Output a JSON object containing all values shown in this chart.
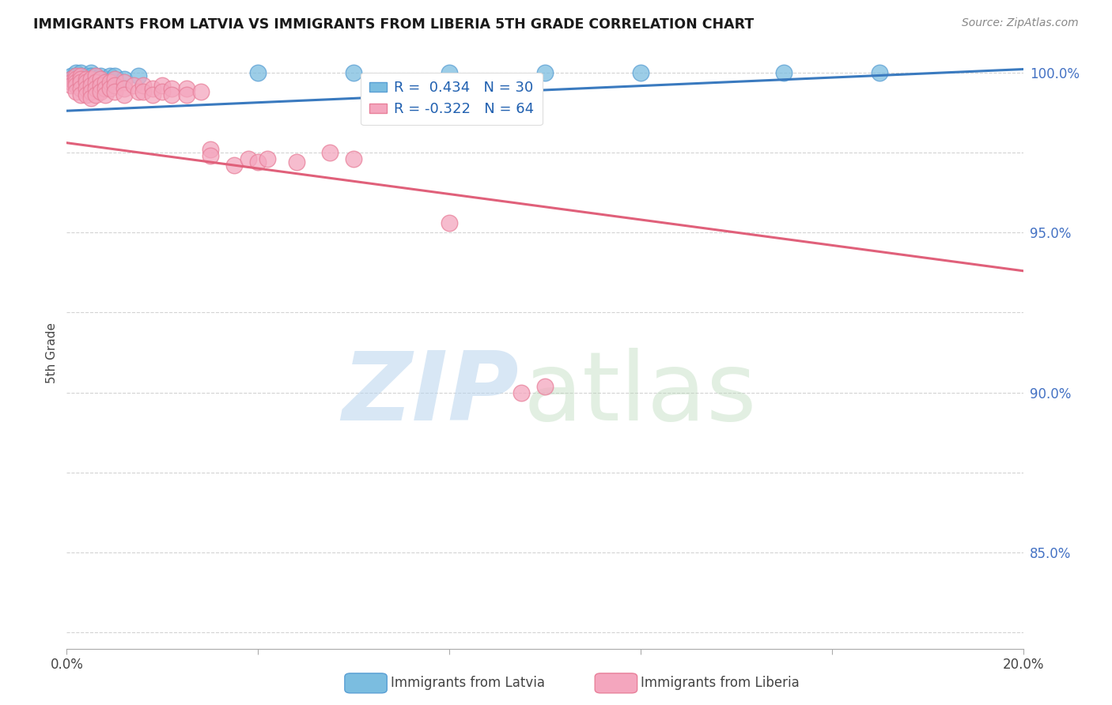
{
  "title": "IMMIGRANTS FROM LATVIA VS IMMIGRANTS FROM LIBERIA 5TH GRADE CORRELATION CHART",
  "source": "Source: ZipAtlas.com",
  "ylabel": "5th Grade",
  "latvia_R": 0.434,
  "latvia_N": 30,
  "liberia_R": -0.322,
  "liberia_N": 64,
  "latvia_color": "#7bbde0",
  "liberia_color": "#f4a6be",
  "latvia_line_color": "#3a7abf",
  "liberia_line_color": "#e0607a",
  "legend_label_latvia": "Immigrants from Latvia",
  "legend_label_liberia": "Immigrants from Liberia",
  "y_min": 0.82,
  "y_max": 1.005,
  "x_min": 0.0,
  "x_max": 0.2,
  "latvia_line": [
    0.0,
    0.988,
    0.2,
    1.001
  ],
  "liberia_line": [
    0.0,
    0.978,
    0.2,
    0.938
  ],
  "latvia_scatter": [
    [
      0.001,
      0.999
    ],
    [
      0.001,
      0.998
    ],
    [
      0.002,
      1.0
    ],
    [
      0.002,
      0.999
    ],
    [
      0.002,
      0.998
    ],
    [
      0.002,
      0.997
    ],
    [
      0.003,
      1.0
    ],
    [
      0.003,
      0.999
    ],
    [
      0.003,
      0.998
    ],
    [
      0.003,
      0.997
    ],
    [
      0.004,
      0.999
    ],
    [
      0.004,
      0.998
    ],
    [
      0.005,
      1.0
    ],
    [
      0.005,
      0.999
    ],
    [
      0.005,
      0.998
    ],
    [
      0.006,
      0.999
    ],
    [
      0.006,
      0.998
    ],
    [
      0.007,
      0.999
    ],
    [
      0.008,
      0.998
    ],
    [
      0.009,
      0.999
    ],
    [
      0.01,
      0.999
    ],
    [
      0.012,
      0.998
    ],
    [
      0.015,
      0.999
    ],
    [
      0.04,
      1.0
    ],
    [
      0.06,
      1.0
    ],
    [
      0.08,
      1.0
    ],
    [
      0.1,
      1.0
    ],
    [
      0.12,
      1.0
    ],
    [
      0.15,
      1.0
    ],
    [
      0.17,
      1.0
    ]
  ],
  "liberia_scatter": [
    [
      0.001,
      0.998
    ],
    [
      0.001,
      0.997
    ],
    [
      0.001,
      0.996
    ],
    [
      0.002,
      0.999
    ],
    [
      0.002,
      0.998
    ],
    [
      0.002,
      0.997
    ],
    [
      0.002,
      0.996
    ],
    [
      0.002,
      0.994
    ],
    [
      0.003,
      0.999
    ],
    [
      0.003,
      0.998
    ],
    [
      0.003,
      0.997
    ],
    [
      0.003,
      0.995
    ],
    [
      0.003,
      0.993
    ],
    [
      0.004,
      0.998
    ],
    [
      0.004,
      0.997
    ],
    [
      0.004,
      0.995
    ],
    [
      0.004,
      0.993
    ],
    [
      0.005,
      0.998
    ],
    [
      0.005,
      0.996
    ],
    [
      0.005,
      0.994
    ],
    [
      0.005,
      0.992
    ],
    [
      0.006,
      0.999
    ],
    [
      0.006,
      0.997
    ],
    [
      0.006,
      0.995
    ],
    [
      0.006,
      0.993
    ],
    [
      0.007,
      0.998
    ],
    [
      0.007,
      0.996
    ],
    [
      0.007,
      0.994
    ],
    [
      0.008,
      0.997
    ],
    [
      0.008,
      0.995
    ],
    [
      0.008,
      0.993
    ],
    [
      0.009,
      0.997
    ],
    [
      0.009,
      0.995
    ],
    [
      0.01,
      0.998
    ],
    [
      0.01,
      0.996
    ],
    [
      0.01,
      0.994
    ],
    [
      0.012,
      0.997
    ],
    [
      0.012,
      0.995
    ],
    [
      0.012,
      0.993
    ],
    [
      0.014,
      0.996
    ],
    [
      0.015,
      0.994
    ],
    [
      0.016,
      0.996
    ],
    [
      0.016,
      0.994
    ],
    [
      0.018,
      0.995
    ],
    [
      0.018,
      0.993
    ],
    [
      0.02,
      0.996
    ],
    [
      0.02,
      0.994
    ],
    [
      0.022,
      0.995
    ],
    [
      0.022,
      0.993
    ],
    [
      0.025,
      0.995
    ],
    [
      0.025,
      0.993
    ],
    [
      0.028,
      0.994
    ],
    [
      0.03,
      0.976
    ],
    [
      0.03,
      0.974
    ],
    [
      0.035,
      0.971
    ],
    [
      0.038,
      0.973
    ],
    [
      0.04,
      0.972
    ],
    [
      0.042,
      0.973
    ],
    [
      0.048,
      0.972
    ],
    [
      0.055,
      0.975
    ],
    [
      0.06,
      0.973
    ],
    [
      0.08,
      0.953
    ],
    [
      0.095,
      0.9
    ],
    [
      0.1,
      0.902
    ]
  ]
}
